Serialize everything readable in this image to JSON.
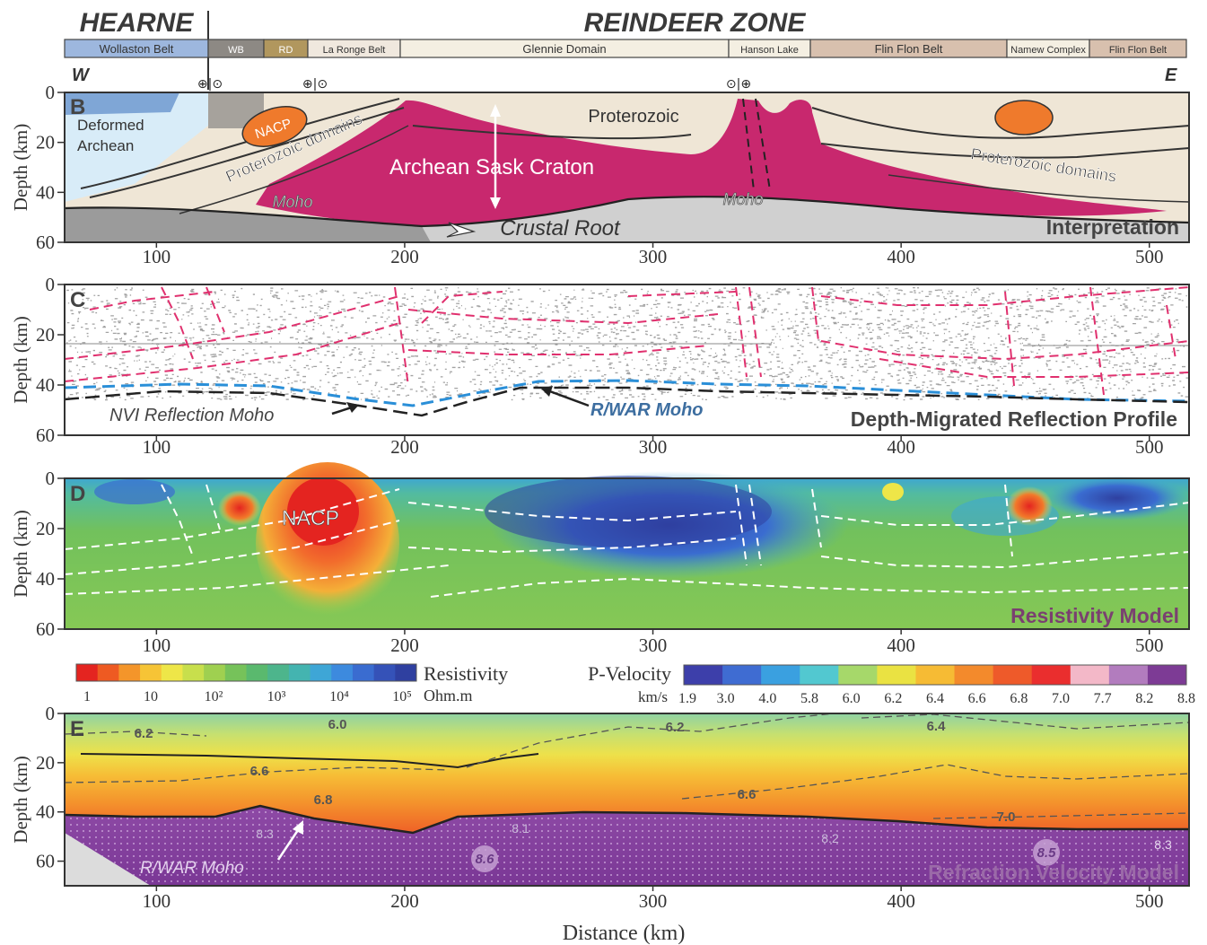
{
  "header": {
    "hearne": "HEARNE",
    "reindeer": "REINDEER ZONE",
    "west": "W",
    "east": "E",
    "belts": [
      "Wollaston Belt",
      "WB",
      "RD",
      "La Ronge Belt",
      "Glennie Domain",
      "Hanson Lake",
      "Flin Flon Belt",
      "Namew Complex",
      "Flin Flon Belt"
    ],
    "belt_colors": [
      "#9db7de",
      "#8d8984",
      "#b1975e",
      "#f0e8de",
      "#f4efe2",
      "#f4efe2",
      "#d8c0ae",
      "#f4efe2",
      "#d8c0ae"
    ],
    "symbols": [
      "⊕|⊙",
      "⊕|⊙",
      "⊙|⊕"
    ]
  },
  "axes": {
    "depth_label": "Depth (km)",
    "depth_ticks": [
      "0",
      "20",
      "40",
      "60"
    ],
    "x_ticks": [
      "100",
      "200",
      "300",
      "400",
      "500"
    ],
    "x_label": "Distance (km)"
  },
  "panel_b": {
    "letter": "B",
    "title": "Interpretation",
    "labels": {
      "deformed": "Deformed",
      "archean": "Archean",
      "nacp": "NACP",
      "proterozoic": "Proterozoic",
      "prot_domains_left": "Proterozoic domains",
      "prot_domains_right": "Proterozoic domains",
      "sask": "Archean Sask Craton",
      "moho_left": "Moho",
      "moho_right": "Moho",
      "root": "Crustal Root"
    },
    "colors": {
      "craton": "#c8286e",
      "proterozoic": "#efe6d6",
      "hearne": "#d8ecf8",
      "mantle": "#9b9b9b",
      "nacp": "#ef7a2c"
    }
  },
  "panel_c": {
    "letter": "C",
    "title": "Depth-Migrated Reflection Profile",
    "labels": {
      "nvi": "NVI Reflection Moho",
      "rwar": "R/WAR Moho"
    },
    "colors": {
      "faults": "#e0306e",
      "rwar": "#2a8fd8",
      "nvi": "#222222"
    }
  },
  "panel_d": {
    "letter": "D",
    "title": "Resistivity Model",
    "labels": {
      "nacp": "NACP"
    }
  },
  "legends": {
    "resistivity": {
      "title": "Resistivity",
      "unit": "Ohm.m",
      "ticks": [
        "1",
        "10",
        "10²",
        "10³",
        "10⁴",
        "10⁵"
      ],
      "colors": [
        "#e42420",
        "#ee5a22",
        "#f4952a",
        "#f6c436",
        "#eee648",
        "#c8df4c",
        "#9fd050",
        "#76c25a",
        "#5ab96e",
        "#4db58c",
        "#44b4b0",
        "#3ea6d6",
        "#3d8ade",
        "#3a6cd0",
        "#3552b8",
        "#2f40a0"
      ]
    },
    "velocity": {
      "title": "P-Velocity",
      "unit": "km/s",
      "ticks": [
        "1.9",
        "3.0",
        "4.0",
        "5.8",
        "6.0",
        "6.2",
        "6.4",
        "6.6",
        "6.8",
        "7.0",
        "7.7",
        "8.2",
        "8.8"
      ],
      "colors": [
        "#3d3faa",
        "#3f6cd2",
        "#3aa0e0",
        "#52c8d0",
        "#a6d86a",
        "#eae242",
        "#f6bb34",
        "#f38a2c",
        "#ee5a2a",
        "#ea2e2e",
        "#f3b8c8",
        "#b27cbe",
        "#7d3b95"
      ]
    }
  },
  "panel_e": {
    "letter": "E",
    "title": "Refraction Velocity Model",
    "contours": {
      "c62a": "6.2",
      "c60": "6.0",
      "c62b": "6.2",
      "c64": "6.4",
      "c66a": "6.6",
      "c66b": "6.6",
      "c68": "6.8",
      "c70": "7.0"
    },
    "mantle": {
      "v83a": "8.3",
      "v81": "8.1",
      "v82": "8.2",
      "v86": "8.6",
      "v85": "8.5",
      "v83b": "8.3"
    },
    "labels": {
      "rwar": "R/WAR Moho"
    }
  }
}
